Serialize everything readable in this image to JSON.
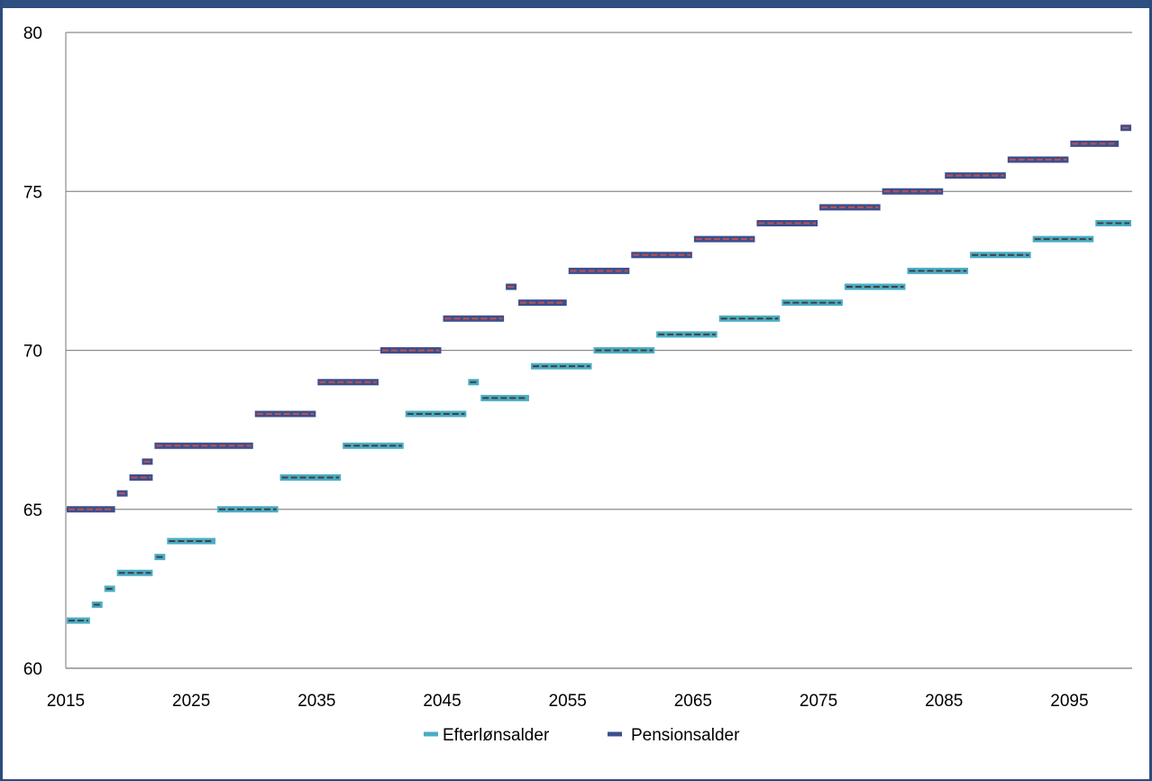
{
  "chart_data": {
    "type": "line",
    "title": "",
    "xlabel": "",
    "ylabel": "",
    "xlim": [
      2015,
      2100
    ],
    "ylim": [
      60,
      80
    ],
    "x_ticks": [
      "2015",
      "2025",
      "2035",
      "2045",
      "2055",
      "2065",
      "2075",
      "2085",
      "2095"
    ],
    "y_ticks": [
      "60",
      "65",
      "70",
      "75",
      "80"
    ],
    "grid": true,
    "legend_position": "bottom",
    "series": [
      {
        "name": "Efterlønsalder",
        "color": "#4aacc5",
        "dash_color": "#404040",
        "segments": [
          {
            "x_start": 2015,
            "x_end": 2017,
            "y": 61.5
          },
          {
            "x_start": 2017,
            "x_end": 2018,
            "y": 62
          },
          {
            "x_start": 2018,
            "x_end": 2019,
            "y": 62.5
          },
          {
            "x_start": 2019,
            "x_end": 2022,
            "y": 63
          },
          {
            "x_start": 2022,
            "x_end": 2023,
            "y": 63.5
          },
          {
            "x_start": 2023,
            "x_end": 2027,
            "y": 64
          },
          {
            "x_start": 2027,
            "x_end": 2032,
            "y": 65
          },
          {
            "x_start": 2032,
            "x_end": 2037,
            "y": 66
          },
          {
            "x_start": 2037,
            "x_end": 2042,
            "y": 67
          },
          {
            "x_start": 2042,
            "x_end": 2047,
            "y": 68
          },
          {
            "x_start": 2047,
            "x_end": 2048,
            "y": 69
          },
          {
            "x_start": 2048,
            "x_end": 2052,
            "y": 68.5
          },
          {
            "x_start": 2052,
            "x_end": 2057,
            "y": 69.5
          },
          {
            "x_start": 2057,
            "x_end": 2062,
            "y": 70
          },
          {
            "x_start": 2062,
            "x_end": 2067,
            "y": 70.5
          },
          {
            "x_start": 2067,
            "x_end": 2072,
            "y": 71
          },
          {
            "x_start": 2072,
            "x_end": 2077,
            "y": 71.5
          },
          {
            "x_start": 2077,
            "x_end": 2082,
            "y": 72
          },
          {
            "x_start": 2082,
            "x_end": 2087,
            "y": 72.5
          },
          {
            "x_start": 2087,
            "x_end": 2092,
            "y": 73
          },
          {
            "x_start": 2092,
            "x_end": 2097,
            "y": 73.5
          },
          {
            "x_start": 2097,
            "x_end": 2100,
            "y": 74
          }
        ]
      },
      {
        "name": "Pensionsalder",
        "color": "#3c4f8e",
        "dash_color": "#c0504d",
        "segments": [
          {
            "x_start": 2015,
            "x_end": 2019,
            "y": 65
          },
          {
            "x_start": 2019,
            "x_end": 2020,
            "y": 65.5
          },
          {
            "x_start": 2020,
            "x_end": 2022,
            "y": 66
          },
          {
            "x_start": 2021,
            "x_end": 2022,
            "y": 66.5
          },
          {
            "x_start": 2022,
            "x_end": 2030,
            "y": 67
          },
          {
            "x_start": 2030,
            "x_end": 2035,
            "y": 68
          },
          {
            "x_start": 2035,
            "x_end": 2040,
            "y": 69
          },
          {
            "x_start": 2040,
            "x_end": 2045,
            "y": 70
          },
          {
            "x_start": 2045,
            "x_end": 2050,
            "y": 71
          },
          {
            "x_start": 2050,
            "x_end": 2051,
            "y": 72
          },
          {
            "x_start": 2051,
            "x_end": 2055,
            "y": 71.5
          },
          {
            "x_start": 2055,
            "x_end": 2060,
            "y": 72.5
          },
          {
            "x_start": 2060,
            "x_end": 2065,
            "y": 73
          },
          {
            "x_start": 2065,
            "x_end": 2070,
            "y": 73.5
          },
          {
            "x_start": 2070,
            "x_end": 2075,
            "y": 74
          },
          {
            "x_start": 2075,
            "x_end": 2080,
            "y": 74.5
          },
          {
            "x_start": 2080,
            "x_end": 2085,
            "y": 75
          },
          {
            "x_start": 2085,
            "x_end": 2090,
            "y": 75.5
          },
          {
            "x_start": 2090,
            "x_end": 2095,
            "y": 76
          },
          {
            "x_start": 2095,
            "x_end": 2099,
            "y": 76.5
          },
          {
            "x_start": 2099,
            "x_end": 2100,
            "y": 77
          }
        ]
      }
    ]
  }
}
